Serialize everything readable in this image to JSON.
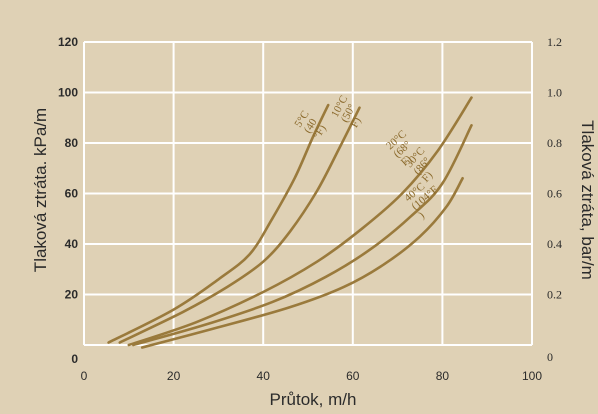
{
  "chart_data": {
    "type": "line",
    "xlabel": "Průtok, m/h",
    "ylabel": "Tlaková ztráta. kPa/m",
    "y2label": "Tlaková ztráta, bar/m",
    "xlim": [
      0,
      100
    ],
    "ylim": [
      0,
      120
    ],
    "y2lim": [
      0,
      1.2
    ],
    "x_ticks": [
      0,
      20,
      40,
      60,
      80,
      100
    ],
    "y_ticks": [
      0,
      20,
      40,
      60,
      80,
      100,
      120
    ],
    "y2_ticks": [
      "0",
      "0.2",
      "0.4",
      "0.6",
      "0.8",
      "1.0",
      "1.2"
    ],
    "grid": true,
    "colors": {
      "background": "#dfd1b5",
      "grid": "#ffffff",
      "curve": "#9a7a3c",
      "label": "#8b6a2c"
    },
    "series": [
      {
        "label_lines": [
          "5°C",
          "(40",
          "°F)"
        ],
        "x": [
          5.5,
          20,
          30,
          37,
          42,
          47,
          51,
          54.5
        ],
        "y": [
          1,
          14,
          26,
          36,
          50,
          66,
          82,
          95
        ]
      },
      {
        "label_lines": [
          "10°C",
          "(50°",
          "F)"
        ],
        "x": [
          8,
          22,
          32,
          40,
          46,
          52,
          57,
          61.5
        ],
        "y": [
          1,
          13,
          23,
          33,
          45,
          61,
          78,
          94
        ]
      },
      {
        "label_lines": [
          "20°C",
          "(68°",
          "F)"
        ],
        "x": [
          10,
          25,
          40,
          52,
          62,
          71,
          79,
          86.5
        ],
        "y": [
          0,
          9,
          21,
          33,
          46,
          60,
          77,
          98
        ]
      },
      {
        "label_lines": [
          "30°C",
          "(86°",
          "F)"
        ],
        "x": [
          11,
          27,
          42,
          54,
          64,
          73,
          80,
          86.5
        ],
        "y": [
          0,
          8,
          17,
          27,
          38,
          51,
          64,
          87
        ]
      },
      {
        "label_lines": [
          "40°C",
          "(104°F",
          ")"
        ],
        "x": [
          13,
          30,
          46,
          58,
          67,
          75,
          81,
          84.5
        ],
        "y": [
          -1,
          7,
          15,
          23,
          32,
          43,
          55,
          66
        ]
      }
    ]
  }
}
